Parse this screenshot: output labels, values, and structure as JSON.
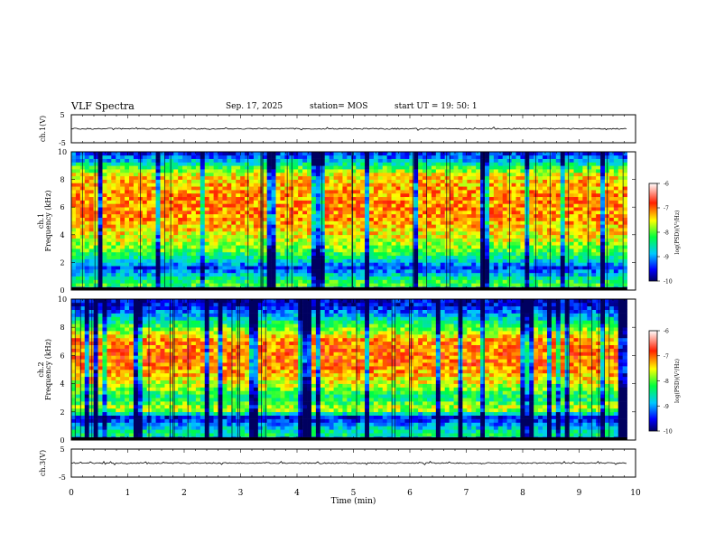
{
  "header": {
    "title": "VLF Spectra",
    "date": "Sep. 17, 2025",
    "station": "station= MOS",
    "start": "start  UT =   19: 50: 1"
  },
  "chart_data": [
    {
      "type": "line",
      "panel": "ch1-waveform",
      "ylabel": "ch.1(V)",
      "ylim": [
        -5,
        5
      ],
      "yticks": [
        "5",
        "-5"
      ],
      "xlim": [
        0,
        10
      ],
      "series": [
        {
          "values_approx_baseline": 0
        }
      ]
    },
    {
      "type": "heatmap",
      "panel": "ch1-spectrogram",
      "ylabel": "ch.1 Frequency (kHz)",
      "ylim": [
        0,
        10
      ],
      "yticks": [
        "0",
        "2",
        "4",
        "6",
        "8",
        "10"
      ],
      "xlim": [
        0,
        10
      ],
      "data_end_min": 9.85,
      "colorbar": {
        "label": "log(PSD)(V²/Hz)",
        "range": [
          -10,
          -6
        ],
        "ticks": [
          "-6",
          "-7",
          "-8",
          "-9",
          "-10"
        ]
      },
      "profile_freq_khz": [
        0,
        0.4,
        1.0,
        1.6,
        2.2,
        3.0,
        4.0,
        5.5,
        7.0,
        8.2,
        8.8,
        9.3,
        10
      ],
      "profile_log_psd": [
        -9.6,
        -8.0,
        -8.6,
        -9.4,
        -8.6,
        -7.9,
        -7.5,
        -7.1,
        -7.2,
        -7.4,
        -8.0,
        -8.8,
        -9.5
      ]
    },
    {
      "type": "heatmap",
      "panel": "ch2-spectrogram",
      "ylabel": "ch.2 Frequency (kHz)",
      "ylim": [
        0,
        10
      ],
      "yticks": [
        "0",
        "2",
        "4",
        "6",
        "8",
        "10"
      ],
      "xlim": [
        0,
        10
      ],
      "data_end_min": 9.85,
      "colorbar": {
        "label": "log(PSD)(V²/Hz)",
        "range": [
          -10,
          -6
        ],
        "ticks": [
          "-6",
          "-7",
          "-8",
          "-9",
          "-10"
        ]
      },
      "profile_freq_khz": [
        0,
        0.4,
        1.0,
        1.6,
        2.2,
        3.0,
        4.0,
        5.5,
        7.0,
        8.0,
        8.8,
        9.5,
        10
      ],
      "profile_log_psd": [
        -9.6,
        -8.3,
        -8.9,
        -9.6,
        -7.6,
        -8.4,
        -7.6,
        -7.0,
        -7.1,
        -8.0,
        -8.9,
        -9.5,
        -9.7
      ]
    },
    {
      "type": "line",
      "panel": "ch3-waveform",
      "ylabel": "ch.3(V)",
      "ylim": [
        -5,
        5
      ],
      "yticks": [
        "5",
        "-5"
      ],
      "xlim": [
        0,
        10
      ],
      "series": [
        {
          "values_approx_baseline": 0
        }
      ]
    }
  ],
  "xaxis": {
    "label": "Time  (min)",
    "ticks": [
      "0",
      "1",
      "2",
      "3",
      "4",
      "5",
      "6",
      "7",
      "8",
      "9",
      "10"
    ]
  },
  "colors": {
    "axis": "#000000",
    "background": "#ffffff"
  }
}
